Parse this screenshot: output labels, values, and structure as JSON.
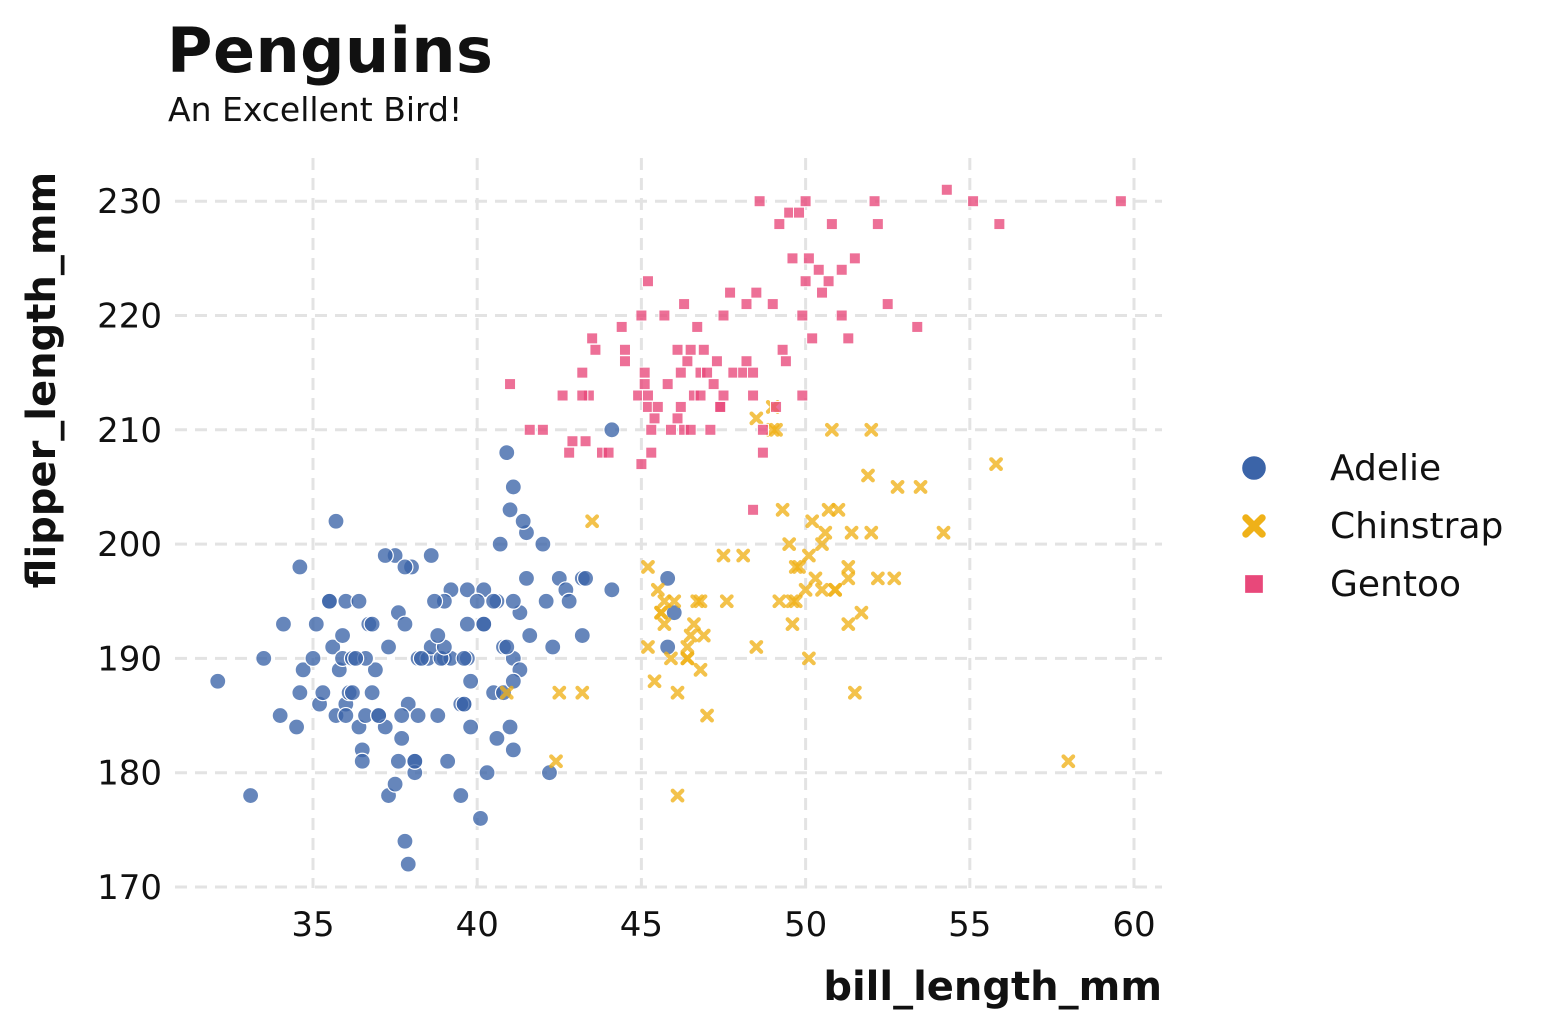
{
  "chart_data": {
    "type": "scatter",
    "title": "Penguins",
    "subtitle": "An Excellent Bird!",
    "xlabel": "bill_length_mm",
    "ylabel": "flipper_length_mm",
    "xlim": [
      31,
      61
    ],
    "ylim": [
      170,
      234
    ],
    "xticks": [
      35,
      40,
      45,
      50,
      55,
      60
    ],
    "yticks": [
      170,
      180,
      190,
      200,
      210,
      220,
      230
    ],
    "grid": true,
    "legend": "right",
    "series": [
      {
        "name": "Adelie",
        "marker": "circle",
        "color": "#3b64a8",
        "points": [
          [
            32.1,
            188
          ],
          [
            33.1,
            178
          ],
          [
            33.5,
            190
          ],
          [
            34.0,
            185
          ],
          [
            34.1,
            193
          ],
          [
            34.5,
            184
          ],
          [
            34.6,
            187
          ],
          [
            34.6,
            198
          ],
          [
            34.7,
            189
          ],
          [
            35.0,
            190
          ],
          [
            35.1,
            193
          ],
          [
            35.2,
            186
          ],
          [
            35.3,
            187
          ],
          [
            35.5,
            195
          ],
          [
            35.6,
            191
          ],
          [
            35.7,
            202
          ],
          [
            35.7,
            185
          ],
          [
            35.8,
            189
          ],
          [
            35.9,
            190
          ],
          [
            36.0,
            195
          ],
          [
            36.0,
            186
          ],
          [
            36.1,
            187
          ],
          [
            36.2,
            190
          ],
          [
            36.4,
            184
          ],
          [
            36.4,
            195
          ],
          [
            36.5,
            182
          ],
          [
            36.5,
            181
          ],
          [
            36.6,
            185
          ],
          [
            36.7,
            193
          ],
          [
            36.8,
            193
          ],
          [
            36.9,
            189
          ],
          [
            37.0,
            185
          ],
          [
            37.2,
            184
          ],
          [
            37.3,
            178
          ],
          [
            37.3,
            191
          ],
          [
            37.5,
            179
          ],
          [
            37.6,
            194
          ],
          [
            37.7,
            183
          ],
          [
            37.8,
            193
          ],
          [
            37.8,
            174
          ],
          [
            37.9,
            172
          ],
          [
            38.0,
            198
          ],
          [
            38.1,
            181
          ],
          [
            38.2,
            190
          ],
          [
            38.5,
            190
          ],
          [
            38.6,
            199
          ],
          [
            38.8,
            185
          ],
          [
            39.0,
            190
          ],
          [
            39.1,
            181
          ],
          [
            39.2,
            196
          ],
          [
            39.5,
            178
          ],
          [
            39.6,
            186
          ],
          [
            39.7,
            190
          ],
          [
            39.8,
            184
          ],
          [
            40.1,
            176
          ],
          [
            40.2,
            193
          ],
          [
            40.3,
            180
          ],
          [
            40.5,
            187
          ],
          [
            40.6,
            195
          ],
          [
            40.8,
            187
          ],
          [
            41.0,
            184
          ],
          [
            41.1,
            182
          ],
          [
            41.1,
            205
          ],
          [
            41.3,
            194
          ],
          [
            41.5,
            197
          ],
          [
            42.0,
            200
          ],
          [
            42.2,
            180
          ],
          [
            42.3,
            191
          ],
          [
            42.5,
            197
          ],
          [
            42.7,
            196
          ],
          [
            43.2,
            197
          ],
          [
            43.2,
            192
          ],
          [
            44.1,
            196
          ],
          [
            44.1,
            210
          ],
          [
            45.8,
            191
          ],
          [
            46.0,
            194
          ],
          [
            45.8,
            197
          ],
          [
            37.5,
            199
          ],
          [
            39.0,
            195
          ],
          [
            38.6,
            191
          ],
          [
            40.9,
            208
          ],
          [
            39.2,
            190
          ],
          [
            37.6,
            181
          ],
          [
            36.2,
            187
          ],
          [
            38.1,
            180
          ],
          [
            35.9,
            192
          ],
          [
            40.6,
            183
          ],
          [
            41.1,
            190
          ],
          [
            37.8,
            198
          ],
          [
            38.9,
            190
          ],
          [
            39.5,
            186
          ],
          [
            40.2,
            193
          ],
          [
            36.6,
            190
          ],
          [
            40.8,
            191
          ],
          [
            41.3,
            189
          ],
          [
            36.0,
            185
          ],
          [
            39.0,
            191
          ],
          [
            41.6,
            192
          ],
          [
            37.9,
            186
          ],
          [
            40.7,
            200
          ],
          [
            38.2,
            185
          ],
          [
            38.8,
            192
          ],
          [
            41.0,
            203
          ],
          [
            39.7,
            193
          ],
          [
            36.8,
            187
          ],
          [
            41.1,
            195
          ],
          [
            42.8,
            195
          ],
          [
            39.6,
            190
          ],
          [
            40.9,
            191
          ],
          [
            37.2,
            199
          ],
          [
            38.1,
            181
          ],
          [
            35.5,
            195
          ],
          [
            40.2,
            196
          ],
          [
            37.0,
            185
          ],
          [
            39.7,
            196
          ],
          [
            41.5,
            201
          ],
          [
            38.7,
            195
          ],
          [
            41.4,
            202
          ],
          [
            42.1,
            195
          ],
          [
            39.8,
            188
          ],
          [
            41.1,
            188
          ],
          [
            40.0,
            195
          ],
          [
            38.3,
            190
          ],
          [
            36.3,
            190
          ],
          [
            39.6,
            186
          ],
          [
            37.7,
            185
          ],
          [
            40.5,
            195
          ],
          [
            43.3,
            197
          ]
        ]
      },
      {
        "name": "Chinstrap",
        "marker": "x",
        "color": "#efb118",
        "points": [
          [
            40.9,
            187
          ],
          [
            42.4,
            181
          ],
          [
            42.5,
            187
          ],
          [
            43.2,
            187
          ],
          [
            43.5,
            202
          ],
          [
            45.2,
            198
          ],
          [
            45.2,
            191
          ],
          [
            45.4,
            188
          ],
          [
            45.6,
            194
          ],
          [
            45.7,
            195
          ],
          [
            45.7,
            193
          ],
          [
            45.9,
            190
          ],
          [
            46.1,
            178
          ],
          [
            46.1,
            187
          ],
          [
            46.4,
            191
          ],
          [
            46.4,
            190
          ],
          [
            46.5,
            192
          ],
          [
            46.6,
            193
          ],
          [
            46.8,
            189
          ],
          [
            46.8,
            195
          ],
          [
            46.9,
            192
          ],
          [
            47.0,
            185
          ],
          [
            47.5,
            199
          ],
          [
            47.6,
            195
          ],
          [
            48.1,
            199
          ],
          [
            48.5,
            191
          ],
          [
            49.0,
            210
          ],
          [
            49.0,
            212
          ],
          [
            49.2,
            195
          ],
          [
            49.3,
            203
          ],
          [
            49.5,
            200
          ],
          [
            49.6,
            193
          ],
          [
            49.7,
            195
          ],
          [
            49.8,
            198
          ],
          [
            50.0,
            196
          ],
          [
            50.1,
            190
          ],
          [
            50.2,
            202
          ],
          [
            50.3,
            197
          ],
          [
            50.5,
            200
          ],
          [
            50.6,
            201
          ],
          [
            50.7,
            203
          ],
          [
            50.8,
            210
          ],
          [
            50.9,
            196
          ],
          [
            51.0,
            203
          ],
          [
            51.3,
            197
          ],
          [
            51.4,
            201
          ],
          [
            51.5,
            187
          ],
          [
            51.7,
            194
          ],
          [
            52.0,
            201
          ],
          [
            52.0,
            210
          ],
          [
            52.2,
            197
          ],
          [
            52.7,
            197
          ],
          [
            52.8,
            205
          ],
          [
            53.5,
            205
          ],
          [
            54.2,
            201
          ],
          [
            55.8,
            207
          ],
          [
            58.0,
            181
          ],
          [
            45.5,
            196
          ],
          [
            46.0,
            195
          ],
          [
            46.7,
            195
          ],
          [
            49.7,
            198
          ],
          [
            50.9,
            196
          ],
          [
            51.3,
            198
          ],
          [
            51.3,
            193
          ],
          [
            50.5,
            196
          ],
          [
            49.1,
            210
          ],
          [
            45.6,
            194
          ],
          [
            46.4,
            190
          ],
          [
            49.6,
            195
          ],
          [
            51.9,
            206
          ],
          [
            50.1,
            199
          ],
          [
            48.5,
            211
          ]
        ]
      },
      {
        "name": "Gentoo",
        "marker": "square",
        "color": "#e8487a",
        "points": [
          [
            41.0,
            214
          ],
          [
            41.6,
            210
          ],
          [
            42.0,
            210
          ],
          [
            42.6,
            213
          ],
          [
            42.8,
            208
          ],
          [
            42.9,
            209
          ],
          [
            43.2,
            215
          ],
          [
            43.3,
            209
          ],
          [
            43.4,
            213
          ],
          [
            43.5,
            218
          ],
          [
            43.6,
            217
          ],
          [
            43.8,
            208
          ],
          [
            44.0,
            208
          ],
          [
            44.4,
            219
          ],
          [
            44.5,
            217
          ],
          [
            44.5,
            216
          ],
          [
            45.0,
            207
          ],
          [
            45.1,
            215
          ],
          [
            45.2,
            212
          ],
          [
            45.2,
            223
          ],
          [
            45.3,
            210
          ],
          [
            45.4,
            211
          ],
          [
            45.5,
            212
          ],
          [
            45.7,
            220
          ],
          [
            45.8,
            214
          ],
          [
            46.1,
            211
          ],
          [
            46.2,
            212
          ],
          [
            46.3,
            210
          ],
          [
            46.4,
            216
          ],
          [
            46.5,
            210
          ],
          [
            46.6,
            213
          ],
          [
            46.8,
            215
          ],
          [
            46.9,
            217
          ],
          [
            47.2,
            214
          ],
          [
            47.3,
            216
          ],
          [
            47.4,
            212
          ],
          [
            47.5,
            213
          ],
          [
            47.7,
            222
          ],
          [
            47.8,
            215
          ],
          [
            48.1,
            215
          ],
          [
            48.2,
            221
          ],
          [
            48.4,
            213
          ],
          [
            48.5,
            222
          ],
          [
            48.6,
            230
          ],
          [
            48.7,
            210
          ],
          [
            49.0,
            221
          ],
          [
            49.1,
            212
          ],
          [
            49.2,
            228
          ],
          [
            49.4,
            216
          ],
          [
            49.5,
            229
          ],
          [
            49.6,
            225
          ],
          [
            49.8,
            229
          ],
          [
            49.9,
            213
          ],
          [
            50.0,
            230
          ],
          [
            50.1,
            225
          ],
          [
            50.2,
            218
          ],
          [
            50.4,
            224
          ],
          [
            50.5,
            222
          ],
          [
            50.7,
            223
          ],
          [
            50.8,
            228
          ],
          [
            51.1,
            220
          ],
          [
            51.3,
            218
          ],
          [
            51.5,
            225
          ],
          [
            52.1,
            230
          ],
          [
            52.2,
            228
          ],
          [
            52.5,
            221
          ],
          [
            53.4,
            219
          ],
          [
            54.3,
            231
          ],
          [
            55.1,
            230
          ],
          [
            55.9,
            228
          ],
          [
            59.6,
            230
          ],
          [
            48.4,
            203
          ],
          [
            43.2,
            213
          ],
          [
            44.9,
            213
          ],
          [
            46.5,
            217
          ],
          [
            45.2,
            213
          ],
          [
            47.4,
            212
          ],
          [
            46.2,
            215
          ],
          [
            46.1,
            217
          ],
          [
            45.1,
            214
          ],
          [
            46.7,
            219
          ],
          [
            47.5,
            220
          ],
          [
            48.4,
            215
          ],
          [
            49.3,
            217
          ],
          [
            48.7,
            208
          ],
          [
            47.1,
            210
          ],
          [
            45.9,
            210
          ],
          [
            46.3,
            221
          ],
          [
            45.3,
            208
          ],
          [
            46.8,
            213
          ],
          [
            49.9,
            220
          ],
          [
            50.0,
            223
          ],
          [
            51.1,
            224
          ],
          [
            45.0,
            220
          ],
          [
            47.0,
            215
          ],
          [
            48.2,
            216
          ]
        ]
      }
    ]
  }
}
